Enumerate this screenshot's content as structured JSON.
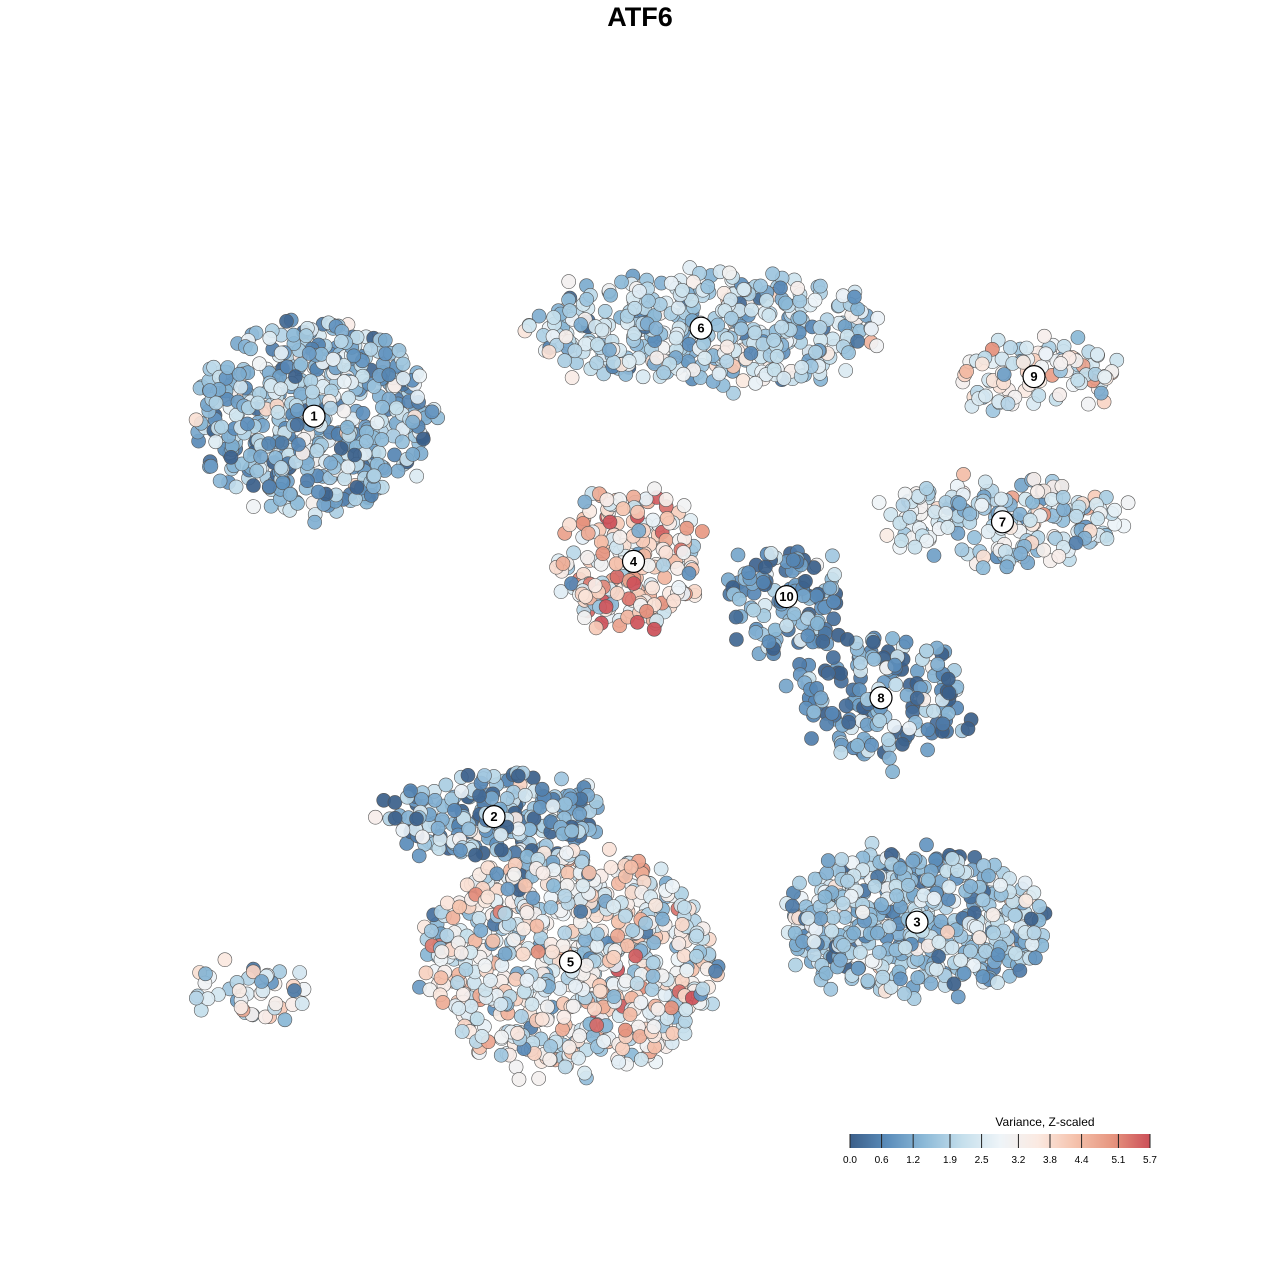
{
  "chart_data": {
    "type": "scatter",
    "title": "ATF6",
    "xlabel": "",
    "ylabel": "",
    "grid": false,
    "axes_visible": false,
    "color_scale": {
      "title": "Variance, Z-scaled",
      "min": 0.0,
      "max": 5.7,
      "ticks": [
        "0.0",
        "0.6",
        "1.2",
        "1.9",
        "2.5",
        "3.2",
        "3.8",
        "4.4",
        "5.1",
        "5.7"
      ],
      "tick_values": [
        0.0,
        0.6,
        1.2,
        1.9,
        2.5,
        3.2,
        3.8,
        4.4,
        5.1,
        5.7
      ],
      "colors": [
        "#3b5f8a",
        "#5b8dbb",
        "#8dbad8",
        "#c5dfec",
        "#eef4f8",
        "#fbeae2",
        "#f5c2ac",
        "#e6957f",
        "#cc4f58"
      ],
      "legend_position": "bottom-right"
    },
    "clusters": [
      {
        "label": "1",
        "x": -0.78,
        "y": 0.52,
        "spread_x": 0.26,
        "spread_y": 0.22,
        "n": 520,
        "mean": 1.6,
        "sd": 0.9
      },
      {
        "label": "6",
        "x": 0.08,
        "y": 0.72,
        "spread_x": 0.38,
        "spread_y": 0.12,
        "n": 420,
        "mean": 2.0,
        "sd": 0.8
      },
      {
        "label": "4",
        "x": -0.07,
        "y": 0.19,
        "spread_x": 0.16,
        "spread_y": 0.16,
        "n": 200,
        "mean": 3.4,
        "sd": 1.2
      },
      {
        "label": "10",
        "x": 0.27,
        "y": 0.11,
        "spread_x": 0.12,
        "spread_y": 0.12,
        "n": 110,
        "mean": 1.0,
        "sd": 0.8
      },
      {
        "label": "9",
        "x": 0.82,
        "y": 0.61,
        "spread_x": 0.17,
        "spread_y": 0.08,
        "n": 100,
        "mean": 2.9,
        "sd": 1.0
      },
      {
        "label": "7",
        "x": 0.75,
        "y": 0.28,
        "spread_x": 0.27,
        "spread_y": 0.09,
        "n": 200,
        "mean": 2.3,
        "sd": 0.9
      },
      {
        "label": "8",
        "x": 0.48,
        "y": -0.12,
        "spread_x": 0.2,
        "spread_y": 0.14,
        "n": 170,
        "mean": 1.1,
        "sd": 0.9
      },
      {
        "label": "2",
        "x": -0.38,
        "y": -0.39,
        "spread_x": 0.25,
        "spread_y": 0.1,
        "n": 230,
        "mean": 1.5,
        "sd": 0.9
      },
      {
        "label": "3",
        "x": 0.56,
        "y": -0.63,
        "spread_x": 0.3,
        "spread_y": 0.16,
        "n": 480,
        "mean": 1.7,
        "sd": 0.8
      },
      {
        "label": "5",
        "x": -0.21,
        "y": -0.72,
        "spread_x": 0.32,
        "spread_y": 0.25,
        "n": 720,
        "mean": 2.8,
        "sd": 1.1
      },
      {
        "label": "",
        "x": -0.92,
        "y": -0.79,
        "spread_x": 0.12,
        "spread_y": 0.06,
        "n": 45,
        "mean": 2.3,
        "sd": 1.1
      }
    ]
  }
}
